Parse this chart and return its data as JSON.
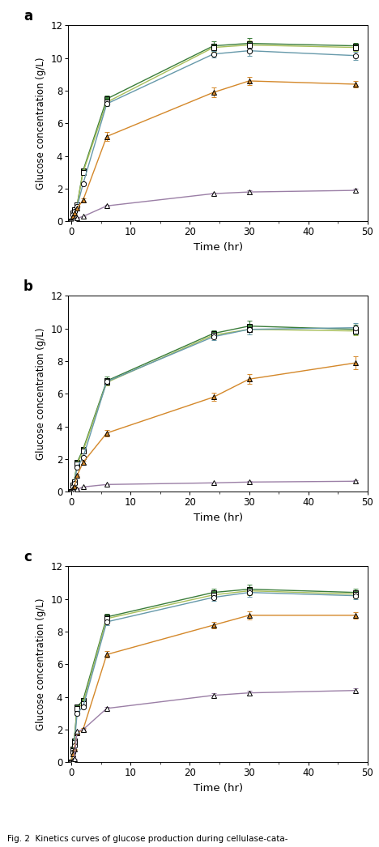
{
  "time_points": [
    0,
    0.25,
    0.5,
    1,
    2,
    6,
    24,
    30,
    48
  ],
  "panels": [
    {
      "label": "a",
      "series": [
        {
          "name": "filled_square",
          "color": "#3a7d3a",
          "linestyle": "-",
          "marker": "s",
          "filled": true,
          "y": [
            0.0,
            0.5,
            0.7,
            1.0,
            3.1,
            7.5,
            10.75,
            10.9,
            10.75
          ],
          "yerr": [
            0.0,
            0.05,
            0.05,
            0.05,
            0.1,
            0.2,
            0.3,
            0.35,
            0.2
          ]
        },
        {
          "name": "open_square",
          "color": "#a8bf5a",
          "linestyle": "-",
          "marker": "s",
          "filled": false,
          "y": [
            0.0,
            0.5,
            0.7,
            1.0,
            3.0,
            7.3,
            10.65,
            10.8,
            10.65
          ],
          "yerr": [
            0.0,
            0.05,
            0.05,
            0.05,
            0.1,
            0.2,
            0.25,
            0.3,
            0.2
          ]
        },
        {
          "name": "open_circle",
          "color": "#6699aa",
          "linestyle": "-",
          "marker": "o",
          "filled": false,
          "y": [
            0.0,
            0.4,
            0.6,
            0.9,
            2.3,
            7.2,
            10.25,
            10.45,
            10.15
          ],
          "yerr": [
            0.0,
            0.05,
            0.05,
            0.05,
            0.1,
            0.15,
            0.2,
            0.3,
            0.25
          ]
        },
        {
          "name": "filled_triangle",
          "color": "#d4882a",
          "linestyle": "-",
          "marker": "^",
          "filled": true,
          "y": [
            0.0,
            0.3,
            0.5,
            0.8,
            1.3,
            5.2,
            7.9,
            8.6,
            8.4
          ],
          "yerr": [
            0.0,
            0.05,
            0.05,
            0.05,
            0.1,
            0.25,
            0.3,
            0.25,
            0.2
          ]
        },
        {
          "name": "open_triangle",
          "color": "#9b7fa6",
          "linestyle": "-",
          "marker": "^",
          "filled": false,
          "y": [
            0.0,
            0.05,
            0.1,
            0.2,
            0.3,
            0.95,
            1.7,
            1.8,
            1.9
          ],
          "yerr": [
            0.0,
            0.02,
            0.02,
            0.02,
            0.03,
            0.05,
            0.08,
            0.08,
            0.08
          ]
        }
      ]
    },
    {
      "label": "b",
      "series": [
        {
          "name": "filled_square",
          "color": "#3a7d3a",
          "linestyle": "-",
          "marker": "s",
          "filled": true,
          "y": [
            0.0,
            0.4,
            0.6,
            1.8,
            2.6,
            6.8,
            9.7,
            10.15,
            9.95
          ],
          "yerr": [
            0.0,
            0.05,
            0.05,
            0.05,
            0.1,
            0.25,
            0.2,
            0.35,
            0.3
          ]
        },
        {
          "name": "open_square",
          "color": "#a8bf5a",
          "linestyle": "-",
          "marker": "s",
          "filled": false,
          "y": [
            0.0,
            0.4,
            0.6,
            1.7,
            2.5,
            6.7,
            9.6,
            9.95,
            9.85
          ],
          "yerr": [
            0.0,
            0.05,
            0.05,
            0.05,
            0.1,
            0.2,
            0.2,
            0.3,
            0.25
          ]
        },
        {
          "name": "open_circle",
          "color": "#6699aa",
          "linestyle": "-",
          "marker": "o",
          "filled": false,
          "y": [
            0.0,
            0.3,
            0.5,
            1.5,
            2.1,
            6.75,
            9.5,
            9.95,
            10.05
          ],
          "yerr": [
            0.0,
            0.04,
            0.04,
            0.04,
            0.08,
            0.2,
            0.2,
            0.3,
            0.3
          ]
        },
        {
          "name": "filled_triangle",
          "color": "#d4882a",
          "linestyle": "-",
          "marker": "^",
          "filled": true,
          "y": [
            0.0,
            0.2,
            0.3,
            1.0,
            1.8,
            3.6,
            5.8,
            6.9,
            7.9
          ],
          "yerr": [
            0.0,
            0.03,
            0.03,
            0.05,
            0.08,
            0.2,
            0.25,
            0.3,
            0.4
          ]
        },
        {
          "name": "open_triangle",
          "color": "#9b7fa6",
          "linestyle": "-",
          "marker": "^",
          "filled": false,
          "y": [
            0.0,
            0.05,
            0.08,
            0.15,
            0.3,
            0.45,
            0.55,
            0.6,
            0.65
          ],
          "yerr": [
            0.0,
            0.02,
            0.02,
            0.02,
            0.03,
            0.03,
            0.04,
            0.04,
            0.04
          ]
        }
      ]
    },
    {
      "label": "c",
      "series": [
        {
          "name": "filled_square",
          "color": "#3a7d3a",
          "linestyle": "-",
          "marker": "s",
          "filled": true,
          "y": [
            0.0,
            0.8,
            1.3,
            3.4,
            3.8,
            8.9,
            10.4,
            10.6,
            10.4
          ],
          "yerr": [
            0.0,
            0.05,
            0.05,
            0.1,
            0.1,
            0.2,
            0.25,
            0.3,
            0.25
          ]
        },
        {
          "name": "open_square",
          "color": "#a8bf5a",
          "linestyle": "-",
          "marker": "s",
          "filled": false,
          "y": [
            0.0,
            0.7,
            1.2,
            3.3,
            3.6,
            8.8,
            10.25,
            10.5,
            10.3
          ],
          "yerr": [
            0.0,
            0.05,
            0.05,
            0.1,
            0.1,
            0.2,
            0.2,
            0.25,
            0.2
          ]
        },
        {
          "name": "open_circle",
          "color": "#6699aa",
          "linestyle": "-",
          "marker": "o",
          "filled": false,
          "y": [
            0.0,
            0.6,
            1.0,
            3.0,
            3.4,
            8.6,
            10.1,
            10.4,
            10.2
          ],
          "yerr": [
            0.0,
            0.04,
            0.04,
            0.08,
            0.08,
            0.2,
            0.2,
            0.25,
            0.2
          ]
        },
        {
          "name": "filled_triangle",
          "color": "#d4882a",
          "linestyle": "-",
          "marker": "^",
          "filled": true,
          "y": [
            0.0,
            0.5,
            0.8,
            1.8,
            2.0,
            6.6,
            8.4,
            9.0,
            9.0
          ],
          "yerr": [
            0.0,
            0.03,
            0.03,
            0.08,
            0.08,
            0.2,
            0.2,
            0.25,
            0.2
          ]
        },
        {
          "name": "open_triangle",
          "color": "#9b7fa6",
          "linestyle": "-",
          "marker": "^",
          "filled": false,
          "y": [
            0.0,
            0.1,
            0.2,
            1.9,
            2.0,
            3.3,
            4.1,
            4.25,
            4.4
          ],
          "yerr": [
            0.0,
            0.02,
            0.02,
            0.05,
            0.05,
            0.1,
            0.12,
            0.12,
            0.12
          ]
        }
      ]
    }
  ],
  "xlabel": "Time (hr)",
  "ylabel": "Glucose concentration (g/L)",
  "ylim": [
    0,
    12
  ],
  "yticks": [
    0,
    2,
    4,
    6,
    8,
    10,
    12
  ],
  "xlim": [
    -0.5,
    50
  ],
  "xticks": [
    0,
    10,
    20,
    30,
    40,
    50
  ],
  "figsize": [
    4.68,
    10.46
  ],
  "dpi": 100,
  "caption": "Fig. 2  Kinetics curves of glucose production during cellulase-cata-"
}
